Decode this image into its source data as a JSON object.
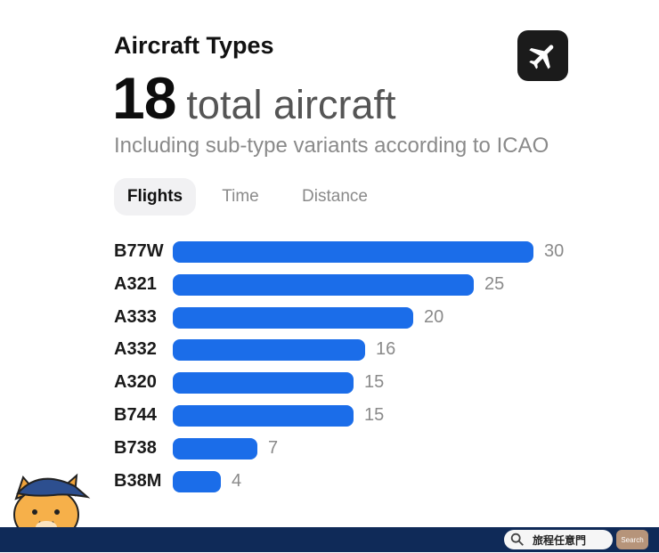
{
  "header": {
    "title": "Aircraft Types",
    "app_icon": "airplane-icon"
  },
  "summary": {
    "count": "18",
    "count_label": "total aircraft",
    "subtitle": "Including sub-type variants according to ICAO"
  },
  "tabs": [
    {
      "label": "Flights",
      "active": true
    },
    {
      "label": "Time",
      "active": false
    },
    {
      "label": "Distance",
      "active": false
    }
  ],
  "colors": {
    "bar": "#1b6de9",
    "footer": "#0f2a58",
    "search_button": "#b6947a"
  },
  "chart_data": {
    "type": "bar",
    "orientation": "horizontal",
    "categories": [
      "B77W",
      "A321",
      "A333",
      "A332",
      "A320",
      "B744",
      "B738",
      "B38M"
    ],
    "values": [
      30,
      25,
      20,
      16,
      15,
      15,
      7,
      4
    ]
  },
  "footer": {
    "search_text": "旅程任意門",
    "search_button_label": "Search",
    "mascot": "cat-mascot-icon"
  }
}
